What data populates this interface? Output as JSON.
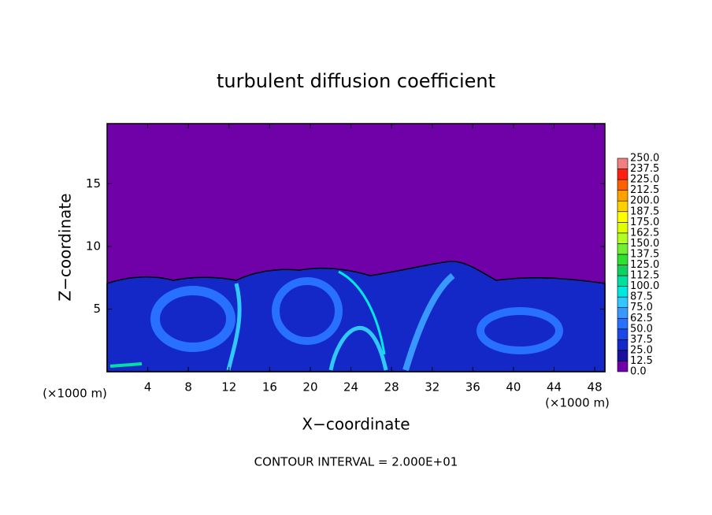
{
  "chart_data": {
    "type": "contour",
    "title": "turbulent diffusion coefficient",
    "x_label": "X−coordinate",
    "y_label": "Z−coordinate",
    "x_unit": "(×1000 m)",
    "y_unit": "(×1000 m)",
    "annotation": "CONTOUR INTERVAL = 2.000E+01",
    "xlim": [
      0,
      49
    ],
    "ylim": [
      0,
      19.8
    ],
    "xticks": [
      4,
      8,
      12,
      16,
      20,
      24,
      28,
      32,
      36,
      40,
      44,
      48
    ],
    "yticks": [
      5,
      10,
      15
    ],
    "colorbar": {
      "levels": [
        {
          "value": 0,
          "label": "0.0"
        },
        {
          "value": 12.5,
          "label": "12.5"
        },
        {
          "value": 25,
          "label": "25.0"
        },
        {
          "value": 37.5,
          "label": "37.5"
        },
        {
          "value": 50,
          "label": "50.0"
        },
        {
          "value": 62.5,
          "label": "62.5"
        },
        {
          "value": 75,
          "label": "75.0"
        },
        {
          "value": 87.5,
          "label": "87.5"
        },
        {
          "value": 100,
          "label": "100.0"
        },
        {
          "value": 112.5,
          "label": "112.5"
        },
        {
          "value": 125,
          "label": "125.0"
        },
        {
          "value": 137.5,
          "label": "137.5"
        },
        {
          "value": 150,
          "label": "150.0"
        },
        {
          "value": 162.5,
          "label": "162.5"
        },
        {
          "value": 175,
          "label": "175.0"
        },
        {
          "value": 187.5,
          "label": "187.5"
        },
        {
          "value": 200,
          "label": "200.0"
        },
        {
          "value": 212.5,
          "label": "212.5"
        },
        {
          "value": 225,
          "label": "225.0"
        },
        {
          "value": 237.5,
          "label": "237.5"
        },
        {
          "value": 250,
          "label": "250.0"
        }
      ],
      "colors": [
        "#7000a8",
        "#1a10a0",
        "#1428c8",
        "#1c48e8",
        "#2870ff",
        "#3898ff",
        "#30c8ff",
        "#00e8e0",
        "#00e0a0",
        "#10d060",
        "#30e030",
        "#70f030",
        "#b0ff20",
        "#e0ff00",
        "#ffff00",
        "#ffd000",
        "#ffa000",
        "#ff6000",
        "#ff2010",
        "#f08080"
      ]
    }
  }
}
